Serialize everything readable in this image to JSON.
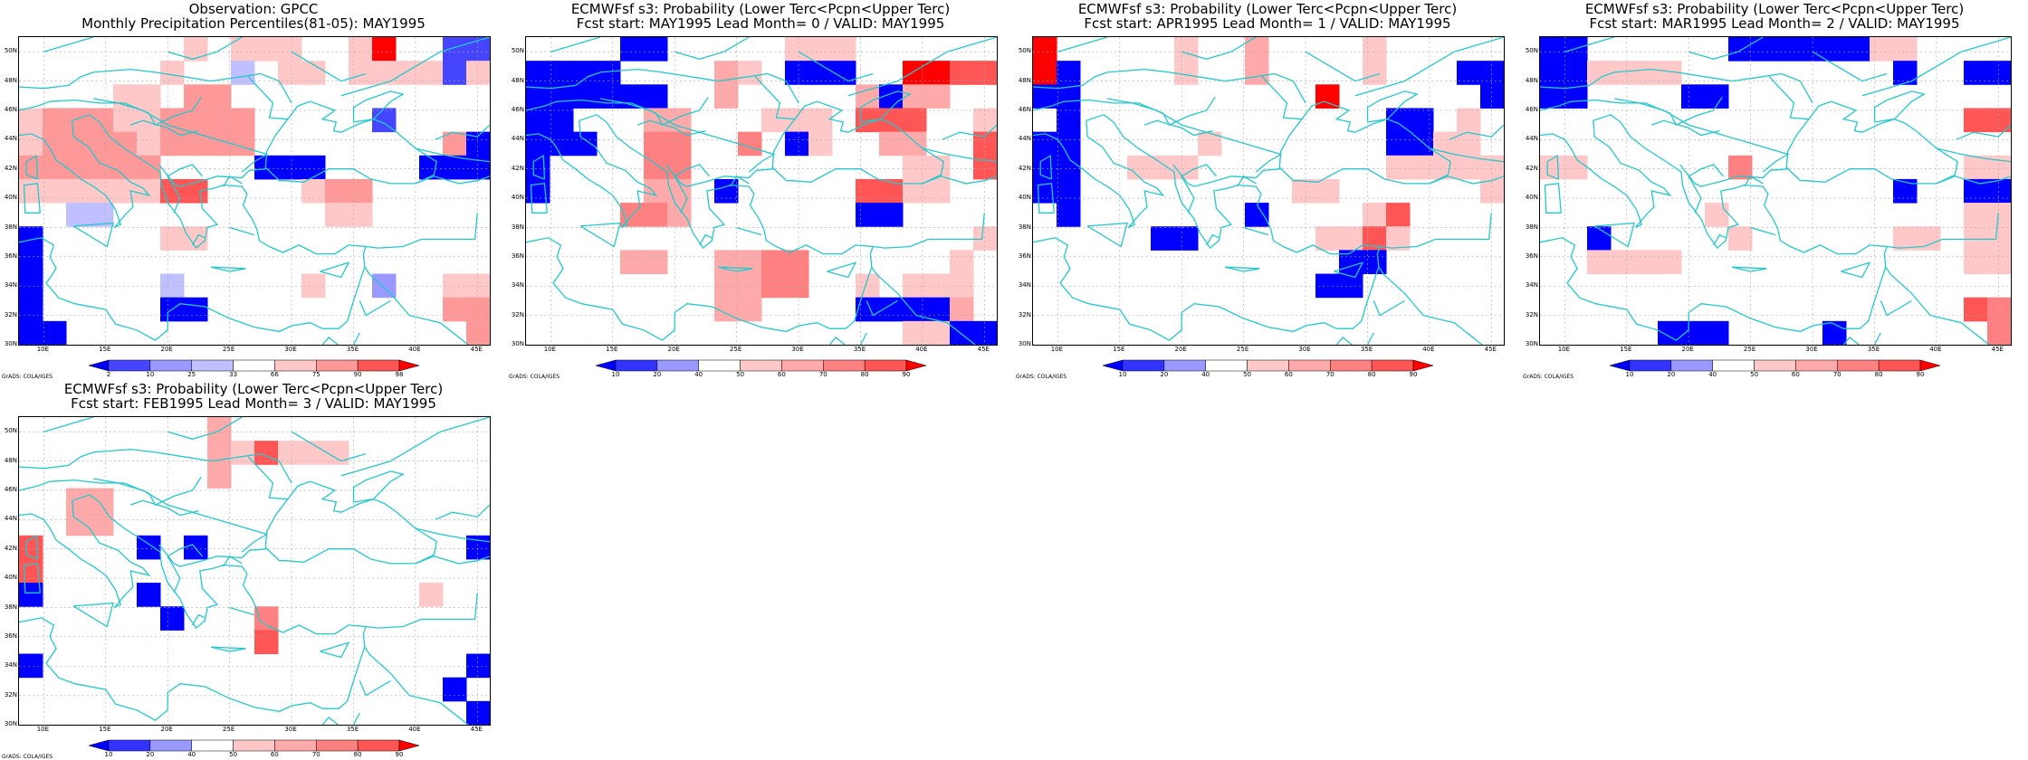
{
  "credit": "GrADS: COLA/IGES",
  "coastline_color": "#22c9cc",
  "lat_labels": [
    "50N",
    "48N",
    "46N",
    "44N",
    "42N",
    "40N",
    "38N",
    "36N",
    "34N",
    "32N",
    "30N"
  ],
  "lon_labels": [
    "10E",
    "15E",
    "20E",
    "25E",
    "30E",
    "35E",
    "40E",
    "45E"
  ],
  "palette_percentile": {
    "levels": [
      "2",
      "10",
      "25",
      "33",
      "66",
      "75",
      "90",
      "98"
    ],
    "colors": [
      "#0000ff",
      "#4545ff",
      "#9999ff",
      "#c0c0ff",
      "#ffffff",
      "#ffc8c8",
      "#ff9999",
      "#ff5555",
      "#ff0000"
    ]
  },
  "palette_probability": {
    "levels": [
      "10",
      "20",
      "40",
      "50",
      "60",
      "70",
      "80",
      "90"
    ],
    "colors": [
      "#0000ff",
      "#3333ff",
      "#9999ff",
      "#ffffff",
      "#ffc8c8",
      "#ffaaaa",
      "#ff8080",
      "#ff5555",
      "#ff0000"
    ]
  },
  "chart_data": [
    {
      "type": "heatmap",
      "title_line1": "Observation: GPCC",
      "title_line2": "Monthly Precipitation Percentiles(81-05): MAY1995",
      "palette": "percentile",
      "grid": [
        "44444445455544584411",
        "44444454434554555515",
        "44445546644444444444",
        "56665566664444414444",
        "56666566664444444460",
        "66666644440004444000",
        "55555577444456644444",
        "44334444444445544444",
        "04444455444444444444",
        "04444444444444444444",
        "04444434444454424455",
        "04444400444444444466",
        "00444444444444444446"
      ]
    },
    {
      "type": "heatmap",
      "title_line1": "ECMWFsf s3: Probability (Lower Terc<Pcpn<Upper Terc)",
      "title_line2": "Fcst start: MAY1995   Lead Month= 0 / VALID: MAY1995",
      "palette": "probability",
      "grid": [
        "33330033333444333333",
        "00003333543000338877",
        "00000033533333505533",
        "00333553334443777334",
        "00033663363043355337",
        "03333663333333334437",
        "03333553033333774433",
        "33336653333333003333",
        "33333333333333333334",
        "33335533556633333343",
        "33333333556633434443",
        "33333333553333000053",
        "33333333333333334400"
      ]
    },
    {
      "type": "heatmap",
      "title_line1": "ECMWFsf s3: Probability (Lower Terc<Pcpn<Upper Terc)",
      "title_line2": "Fcst start: APR1995   Lead Month= 1 / VALID: MAY1995",
      "palette": "probability",
      "grid": [
        "83333343353333433333",
        "80333343353333433300",
        "00333333333383333330",
        "30333333333333300343",
        "00333334333333300443",
        "00334443333333344444",
        "00333333333443333334",
        "30333333303333473333",
        "33333003333344743333",
        "33333333333330033333",
        "33333333333300333333",
        "33333333333333333333",
        "33333333333333333333"
      ]
    },
    {
      "type": "heatmap",
      "title_line1": "ECMWFsf s3: Probability (Lower Terc<Pcpn<Upper Terc)",
      "title_line2": "Fcst start: MAR1995   Lead Month= 2 / VALID: MAY1995",
      "palette": "probability",
      "grid": [
        "00333333000000443333",
        "00444433333333303300",
        "00333300333333333333",
        "33333333333333333377",
        "33333333333333333333",
        "44333333633333333344",
        "33333333333333303300",
        "33333334333333333344",
        "33033333433333344344",
        "33444433333333333344",
        "33333333333333333333",
        "33333333333333333376",
        "33333000333303333336"
      ]
    },
    {
      "type": "heatmap",
      "title_line1": "ECMWFsf s3: Probability (Lower Terc<Pcpn<Upper Terc)",
      "title_line2": "Fcst start: FEB1995   Lead Month= 3 / VALID: MAY1995",
      "palette": "probability",
      "grid": [
        "33333333533333333333",
        "33333333547444333333",
        "33333333533333333333",
        "33553333333333333333",
        "33553333333333333333",
        "73333030333333333330",
        "73333333333333333333",
        "03333033333333333433",
        "33333303336333333333",
        "33333333337333333333",
        "03333333333333333330",
        "33333333333333333303",
        "33333333333333333330"
      ]
    }
  ]
}
